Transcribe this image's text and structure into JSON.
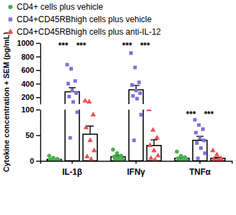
{
  "chart_data": {
    "type": "bar",
    "y_label": "Cytokine concentration + SEM (pg/mL)",
    "categories": [
      "IL-1β",
      "IFNγ",
      "TNFα"
    ],
    "ylim": [
      0,
      1000
    ],
    "yticks": [
      0,
      50,
      100,
      200,
      400,
      600,
      800,
      1000
    ],
    "legend": "top-left",
    "series": [
      {
        "name": "CD4+ cells plus vehicle",
        "color": "#4caf50",
        "marker": "circle",
        "values": [
          3,
          8,
          5
        ],
        "errors": [
          1,
          3,
          2
        ],
        "points": [
          [
            10,
            6,
            4,
            3,
            2,
            2,
            1,
            1,
            0,
            0
          ],
          [
            22,
            15,
            10,
            8,
            6,
            4,
            3,
            2,
            1,
            0
          ],
          [
            18,
            10,
            7,
            5,
            4,
            3,
            2,
            1,
            0,
            0
          ]
        ]
      },
      {
        "name": "CD4+CD45RBhigh cells plus vehicle",
        "color": "#7b72d6",
        "marker": "square",
        "values": [
          280,
          310,
          40
        ],
        "errors": [
          60,
          65,
          8
        ],
        "points": [
          [
            680,
            620,
            440,
            400,
            300,
            260,
            210,
            130,
            95,
            45
          ],
          [
            850,
            640,
            420,
            380,
            300,
            260,
            220,
            180,
            90,
            40
          ],
          [
            80,
            70,
            62,
            55,
            45,
            40,
            35,
            25,
            15,
            5
          ]
        ]
      },
      {
        "name": "CD4+CD45RBhigh cells plus anti-IL-12",
        "color": "#e8504f",
        "marker": "triangle",
        "values": [
          52,
          30,
          5
        ],
        "errors": [
          16,
          11,
          2
        ],
        "points": [
          [
            145,
            130,
            90,
            65,
            40,
            20,
            8,
            3
          ],
          [
            100,
            60,
            45,
            30,
            20,
            10,
            5,
            2
          ],
          [
            20,
            12,
            5,
            3,
            2,
            1,
            0,
            0
          ]
        ]
      }
    ],
    "annotations": [
      {
        "text": "***",
        "x": "IL-1β",
        "between": [
          "CD4+ cells plus vehicle",
          "CD4+CD45RBhigh cells plus vehicle"
        ],
        "y": 920
      },
      {
        "text": "***",
        "x": "IL-1β",
        "between": [
          "CD4+CD45RBhigh cells plus vehicle",
          "CD4+CD45RBhigh cells plus anti-IL-12"
        ],
        "y": 920
      },
      {
        "text": "***",
        "x": "IFNγ",
        "between": [
          "CD4+ cells plus vehicle",
          "CD4+CD45RBhigh cells plus vehicle"
        ],
        "y": 920
      },
      {
        "text": "***",
        "x": "IFNγ",
        "between": [
          "CD4+CD45RBhigh cells plus vehicle",
          "CD4+CD45RBhigh cells plus anti-IL-12"
        ],
        "y": 920
      },
      {
        "text": "***",
        "x": "TNFα",
        "between": [
          "CD4+ cells plus vehicle",
          "CD4+CD45RBhigh cells plus vehicle"
        ],
        "y": 85
      },
      {
        "text": "***",
        "x": "TNFα",
        "between": [
          "CD4+CD45RBhigh cells plus vehicle",
          "CD4+CD45RBhigh cells plus anti-IL-12"
        ],
        "y": 85
      }
    ]
  }
}
